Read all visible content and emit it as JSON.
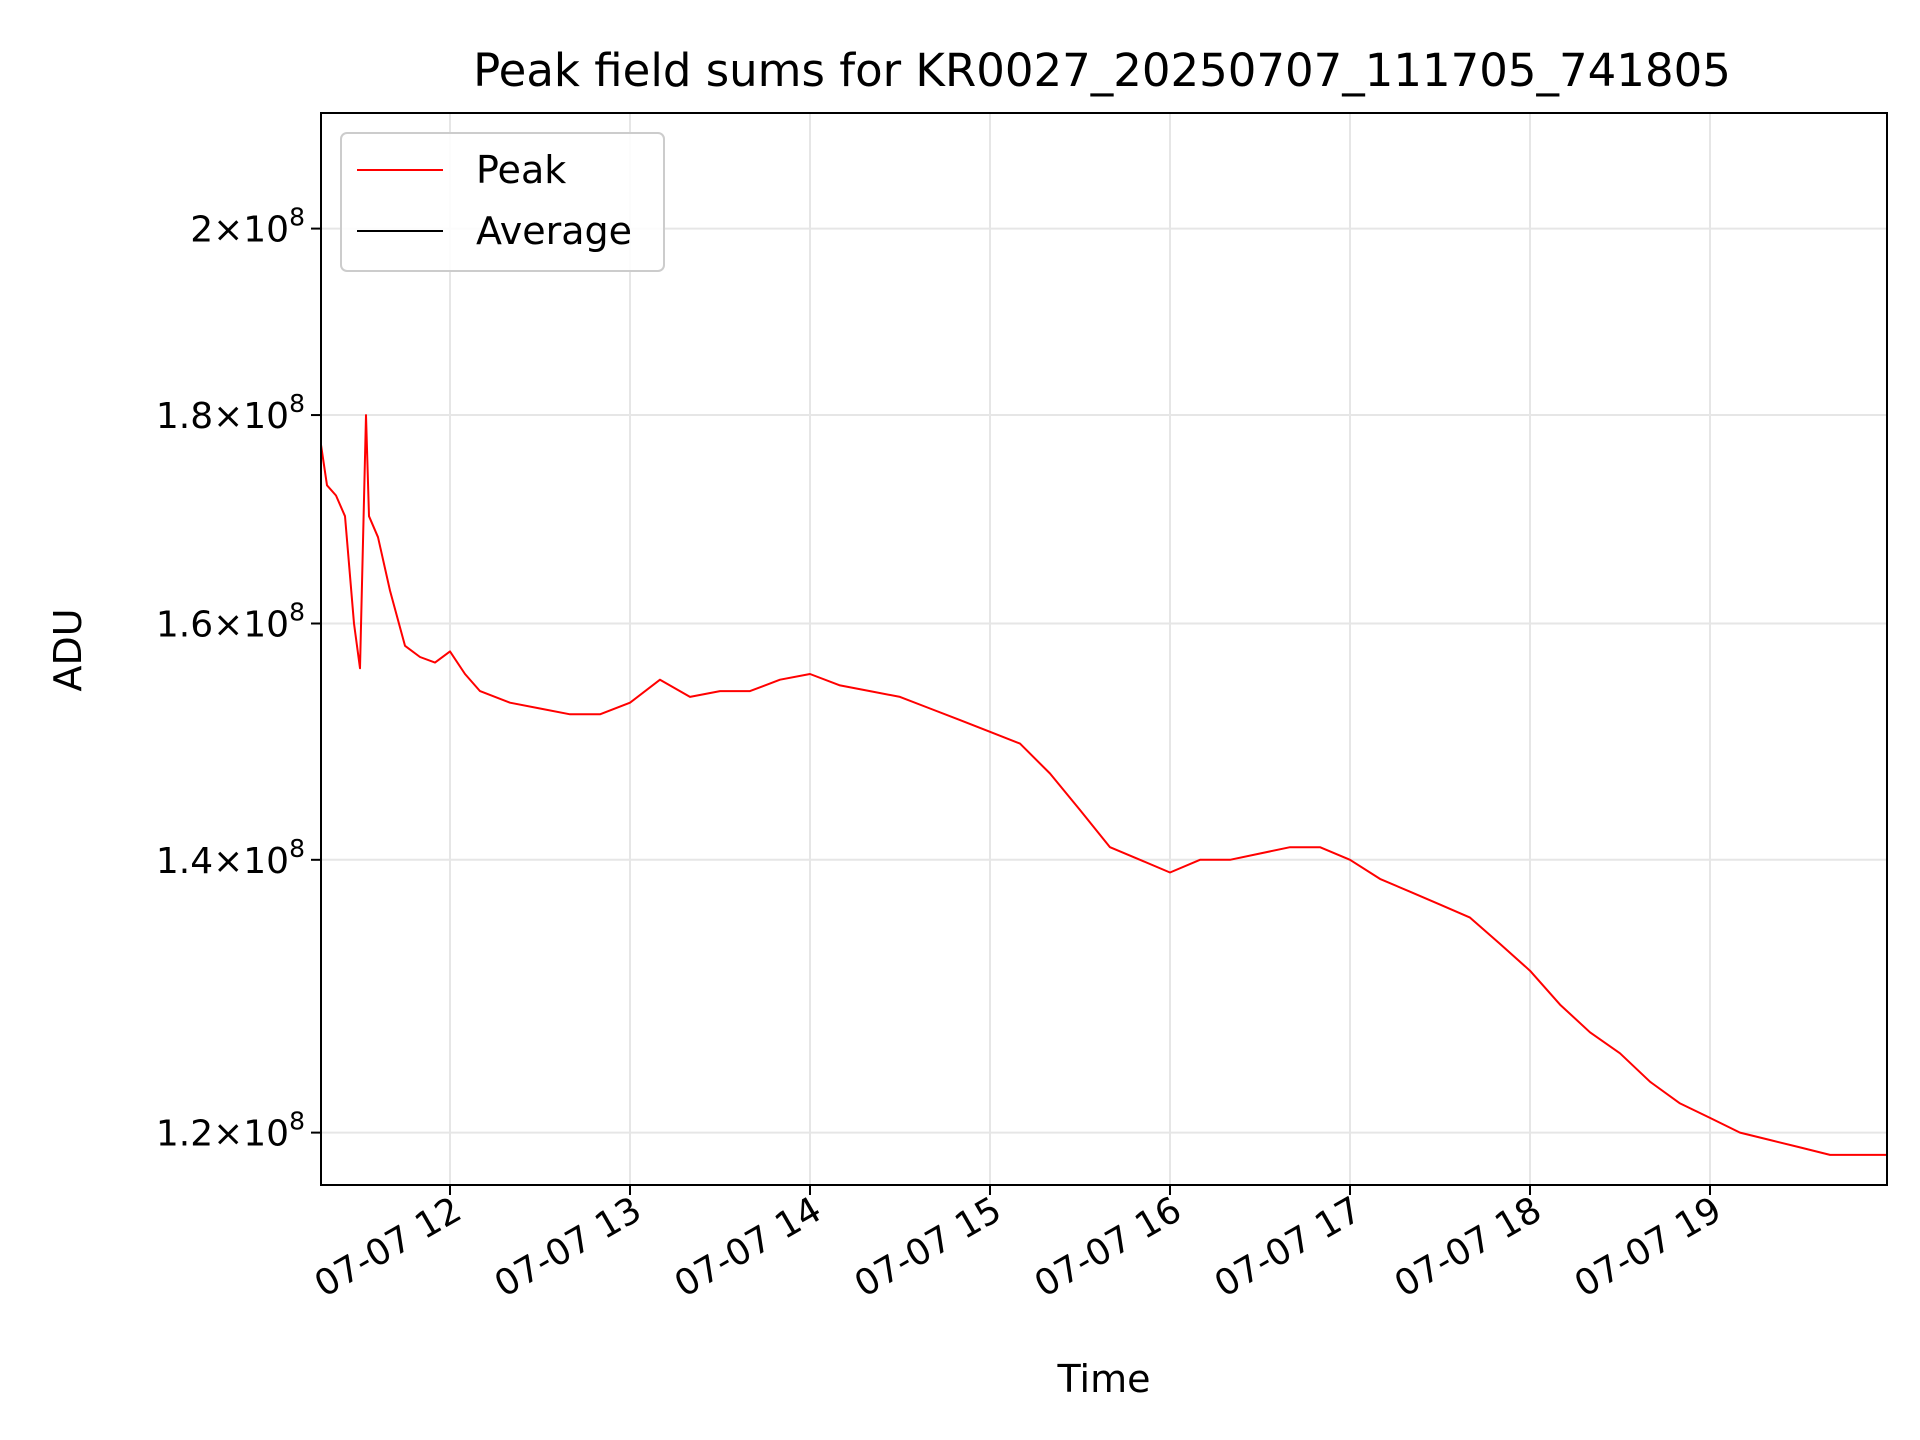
{
  "chart_data": {
    "type": "line",
    "title": "Peak field sums for KR0027_20250707_111705_741805",
    "xlabel": "Time",
    "ylabel": "ADU",
    "y_scale": "log",
    "ylim": [
      116500000,
      213500000
    ],
    "xlim": [
      "2025-07-07 11:17",
      "2025-07-07 19:59"
    ],
    "grid": true,
    "legend": {
      "placement": "upper-left"
    },
    "x_ticks": [
      {
        "t": "2025-07-07 12:00",
        "label": "07-07 12"
      },
      {
        "t": "2025-07-07 13:00",
        "label": "07-07 13"
      },
      {
        "t": "2025-07-07 14:00",
        "label": "07-07 14"
      },
      {
        "t": "2025-07-07 15:00",
        "label": "07-07 15"
      },
      {
        "t": "2025-07-07 16:00",
        "label": "07-07 16"
      },
      {
        "t": "2025-07-07 17:00",
        "label": "07-07 17"
      },
      {
        "t": "2025-07-07 18:00",
        "label": "07-07 18"
      },
      {
        "t": "2025-07-07 19:00",
        "label": "07-07 19"
      }
    ],
    "y_ticks": [
      {
        "value": 120000000,
        "mantissa": "1.2",
        "exponent": "8"
      },
      {
        "value": 140000000,
        "mantissa": "1.4",
        "exponent": "8"
      },
      {
        "value": 160000000,
        "mantissa": "1.6",
        "exponent": "8"
      },
      {
        "value": 180000000,
        "mantissa": "1.8",
        "exponent": "8"
      },
      {
        "value": 200000000,
        "mantissa": "2",
        "exponent": "8"
      }
    ],
    "series": [
      {
        "name": "Peak",
        "color": "#ff0000",
        "points": [
          [
            "2025-07-07 11:17",
            177000000
          ],
          [
            "2025-07-07 11:19",
            173000000
          ],
          [
            "2025-07-07 11:22",
            172000000
          ],
          [
            "2025-07-07 11:25",
            170000000
          ],
          [
            "2025-07-07 11:28",
            160000000
          ],
          [
            "2025-07-07 11:30",
            156000000
          ],
          [
            "2025-07-07 11:32",
            180000000
          ],
          [
            "2025-07-07 11:33",
            170000000
          ],
          [
            "2025-07-07 11:36",
            168000000
          ],
          [
            "2025-07-07 11:40",
            163000000
          ],
          [
            "2025-07-07 11:45",
            158000000
          ],
          [
            "2025-07-07 11:50",
            157000000
          ],
          [
            "2025-07-07 11:55",
            156500000
          ],
          [
            "2025-07-07 12:00",
            157500000
          ],
          [
            "2025-07-07 12:05",
            155500000
          ],
          [
            "2025-07-07 12:10",
            154000000
          ],
          [
            "2025-07-07 12:20",
            153000000
          ],
          [
            "2025-07-07 12:30",
            152500000
          ],
          [
            "2025-07-07 12:40",
            152000000
          ],
          [
            "2025-07-07 12:50",
            152000000
          ],
          [
            "2025-07-07 13:00",
            153000000
          ],
          [
            "2025-07-07 13:10",
            155000000
          ],
          [
            "2025-07-07 13:20",
            153500000
          ],
          [
            "2025-07-07 13:30",
            154000000
          ],
          [
            "2025-07-07 13:40",
            154000000
          ],
          [
            "2025-07-07 13:50",
            155000000
          ],
          [
            "2025-07-07 14:00",
            155500000
          ],
          [
            "2025-07-07 14:10",
            154500000
          ],
          [
            "2025-07-07 14:20",
            154000000
          ],
          [
            "2025-07-07 14:30",
            153500000
          ],
          [
            "2025-07-07 14:40",
            152500000
          ],
          [
            "2025-07-07 14:50",
            151500000
          ],
          [
            "2025-07-07 15:00",
            150500000
          ],
          [
            "2025-07-07 15:10",
            149500000
          ],
          [
            "2025-07-07 15:20",
            147000000
          ],
          [
            "2025-07-07 15:30",
            144000000
          ],
          [
            "2025-07-07 15:40",
            141000000
          ],
          [
            "2025-07-07 15:50",
            140000000
          ],
          [
            "2025-07-07 16:00",
            139000000
          ],
          [
            "2025-07-07 16:10",
            140000000
          ],
          [
            "2025-07-07 16:20",
            140000000
          ],
          [
            "2025-07-07 16:30",
            140500000
          ],
          [
            "2025-07-07 16:40",
            141000000
          ],
          [
            "2025-07-07 16:50",
            141000000
          ],
          [
            "2025-07-07 17:00",
            140000000
          ],
          [
            "2025-07-07 17:10",
            138500000
          ],
          [
            "2025-07-07 17:20",
            137500000
          ],
          [
            "2025-07-07 17:30",
            136500000
          ],
          [
            "2025-07-07 17:40",
            135500000
          ],
          [
            "2025-07-07 17:50",
            133500000
          ],
          [
            "2025-07-07 18:00",
            131500000
          ],
          [
            "2025-07-07 18:10",
            129000000
          ],
          [
            "2025-07-07 18:20",
            127000000
          ],
          [
            "2025-07-07 18:30",
            125500000
          ],
          [
            "2025-07-07 18:40",
            123500000
          ],
          [
            "2025-07-07 18:50",
            122000000
          ],
          [
            "2025-07-07 19:00",
            121000000
          ],
          [
            "2025-07-07 19:10",
            120000000
          ],
          [
            "2025-07-07 19:20",
            119500000
          ],
          [
            "2025-07-07 19:30",
            119000000
          ],
          [
            "2025-07-07 19:40",
            118500000
          ],
          [
            "2025-07-07 19:59",
            118500000
          ]
        ]
      },
      {
        "name": "Average",
        "color": "#000000",
        "points": []
      }
    ]
  }
}
